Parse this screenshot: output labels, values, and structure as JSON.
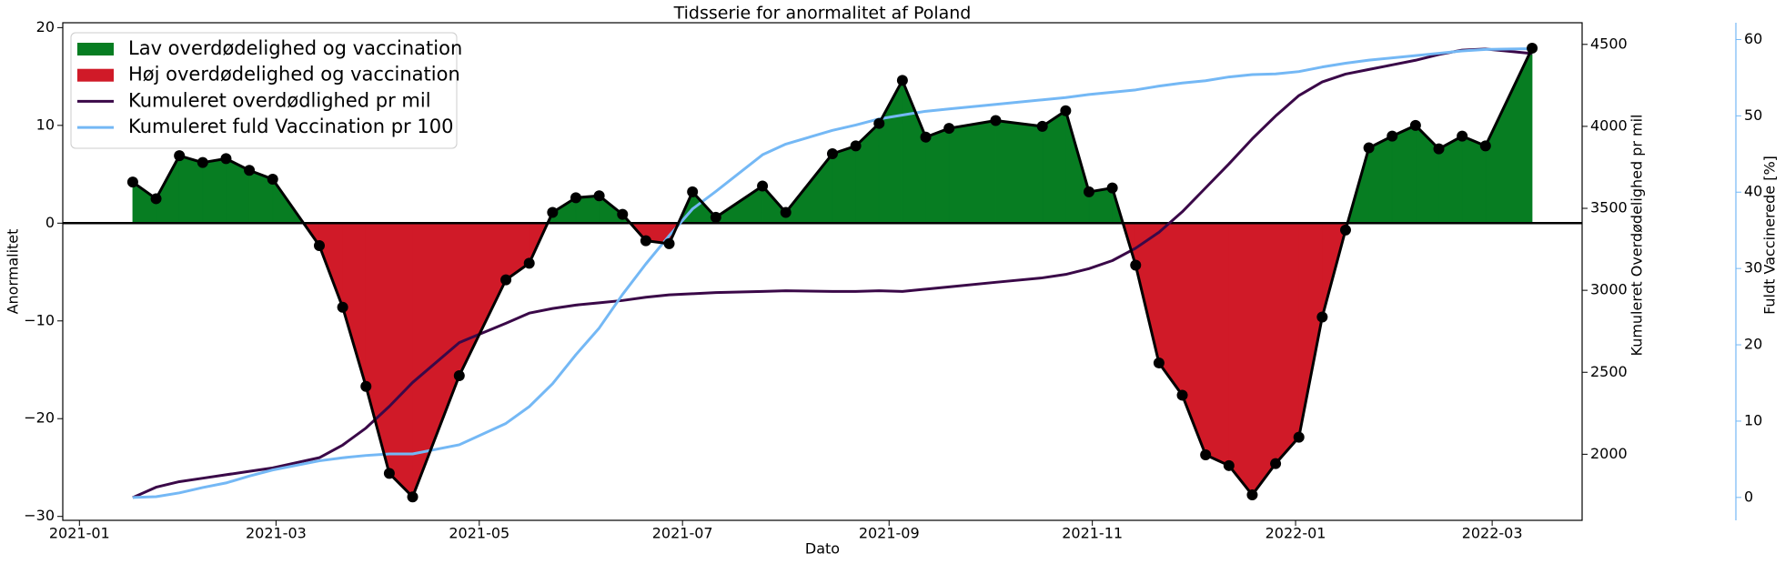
{
  "chart_data": {
    "type": "line",
    "title": "Tidsserie for anormalitet af Poland",
    "xlabel": "Dato",
    "ylabel": "Anormalitet",
    "y2label": "Kumuleret Overdødelighed pr mil",
    "y3label": "Fuldt Vaccinerede [%]",
    "legend": "upper left",
    "x": [
      "2021-01-17",
      "2021-01-24",
      "2021-01-31",
      "2021-02-07",
      "2021-02-14",
      "2021-02-21",
      "2021-02-28",
      "2021-03-14",
      "2021-03-21",
      "2021-03-28",
      "2021-04-04",
      "2021-04-11",
      "2021-04-25",
      "2021-05-09",
      "2021-05-16",
      "2021-05-23",
      "2021-05-30",
      "2021-06-06",
      "2021-06-13",
      "2021-06-20",
      "2021-06-27",
      "2021-07-04",
      "2021-07-11",
      "2021-07-25",
      "2021-08-01",
      "2021-08-15",
      "2021-08-22",
      "2021-08-29",
      "2021-09-05",
      "2021-09-12",
      "2021-09-19",
      "2021-10-03",
      "2021-10-17",
      "2021-10-24",
      "2021-10-31",
      "2021-11-07",
      "2021-11-14",
      "2021-11-21",
      "2021-11-28",
      "2021-12-05",
      "2021-12-12",
      "2021-12-19",
      "2021-12-26",
      "2022-01-02",
      "2022-01-09",
      "2022-01-16",
      "2022-01-23",
      "2022-01-30",
      "2022-02-06",
      "2022-02-13",
      "2022-02-20",
      "2022-02-27",
      "2022-03-13"
    ],
    "xlim": [
      "2020-12-27",
      "2022-03-28"
    ],
    "xticks": [
      {
        "value": "2021-01-01",
        "label": "2021-01"
      },
      {
        "value": "2021-03-01",
        "label": "2021-03"
      },
      {
        "value": "2021-05-01",
        "label": "2021-05"
      },
      {
        "value": "2021-07-01",
        "label": "2021-07"
      },
      {
        "value": "2021-09-01",
        "label": "2021-09"
      },
      {
        "value": "2021-11-01",
        "label": "2021-11"
      },
      {
        "value": "2022-01-01",
        "label": "2022-01"
      },
      {
        "value": "2022-03-01",
        "label": "2022-03"
      }
    ],
    "ylim": [
      -30.4,
      20.5
    ],
    "yticks": [
      {
        "value": -30,
        "label": "−30"
      },
      {
        "value": -20,
        "label": "−20"
      },
      {
        "value": -10,
        "label": "−10"
      },
      0,
      10,
      20
    ],
    "y2lim": [
      1597,
      4632
    ],
    "y2ticks": [
      2000,
      2500,
      3000,
      3500,
      4000,
      4500
    ],
    "y3lim": [
      -3,
      62.2
    ],
    "y3ticks": [
      0,
      10,
      20,
      30,
      40,
      50,
      60
    ],
    "anomaly": {
      "color": "#000000",
      "values": [
        4.2,
        2.5,
        6.9,
        6.2,
        6.6,
        5.4,
        4.5,
        -2.3,
        -8.6,
        -16.7,
        -25.6,
        -28.0,
        -15.6,
        -5.8,
        -4.1,
        1.1,
        2.6,
        2.8,
        0.9,
        -1.8,
        -2.1,
        3.2,
        0.6,
        3.8,
        1.1,
        7.1,
        7.9,
        10.2,
        14.6,
        8.8,
        9.7,
        10.5,
        9.9,
        11.5,
        3.2,
        3.6,
        -4.3,
        -14.3,
        -17.6,
        -23.7,
        -24.8,
        -27.8,
        -24.6,
        -21.9,
        -9.6,
        -0.7,
        7.7,
        8.9,
        10.0,
        7.6,
        8.9,
        7.9,
        17.9
      ]
    },
    "fills": [
      {
        "name": "Lav overdødelighed og vaccination",
        "color": "#077d22",
        "where": "above"
      },
      {
        "name": "Høj overdødelighed og vaccination",
        "color": "#d01a28",
        "where": "below"
      }
    ],
    "series": [
      {
        "name": "Kumuleret overdødlighed pr mil",
        "color": "#3a0848",
        "axis": "y2",
        "values": [
          1736,
          1799,
          1833,
          1854,
          1875,
          1896,
          1917,
          1979,
          2056,
          2160,
          2292,
          2438,
          2681,
          2799,
          2861,
          2889,
          2910,
          2924,
          2938,
          2958,
          2972,
          2979,
          2986,
          2993,
          2997,
          2993,
          2993,
          2997,
          2993,
          3007,
          3021,
          3049,
          3076,
          3097,
          3132,
          3181,
          3257,
          3354,
          3479,
          3625,
          3771,
          3924,
          4063,
          4188,
          4271,
          4319,
          4347,
          4375,
          4403,
          4438,
          4465,
          4472,
          4444
        ]
      },
      {
        "name": "Kumuleret fuld Vaccination pr 100",
        "color": "#74b8f5",
        "axis": "y3",
        "values": [
          0,
          0.1,
          0.6,
          1.3,
          1.9,
          2.8,
          3.6,
          4.8,
          5.2,
          5.5,
          5.7,
          5.7,
          6.9,
          9.7,
          11.9,
          14.9,
          18.7,
          22.2,
          26.6,
          30.6,
          34.3,
          37.8,
          40.1,
          44.9,
          46.3,
          48.1,
          48.8,
          49.6,
          50.1,
          50.6,
          50.9,
          51.5,
          52.1,
          52.4,
          52.8,
          53.1,
          53.4,
          53.9,
          54.3,
          54.6,
          55.1,
          55.4,
          55.5,
          55.8,
          56.4,
          56.9,
          57.3,
          57.6,
          57.9,
          58.2,
          58.5,
          58.7,
          58.8
        ]
      }
    ]
  }
}
